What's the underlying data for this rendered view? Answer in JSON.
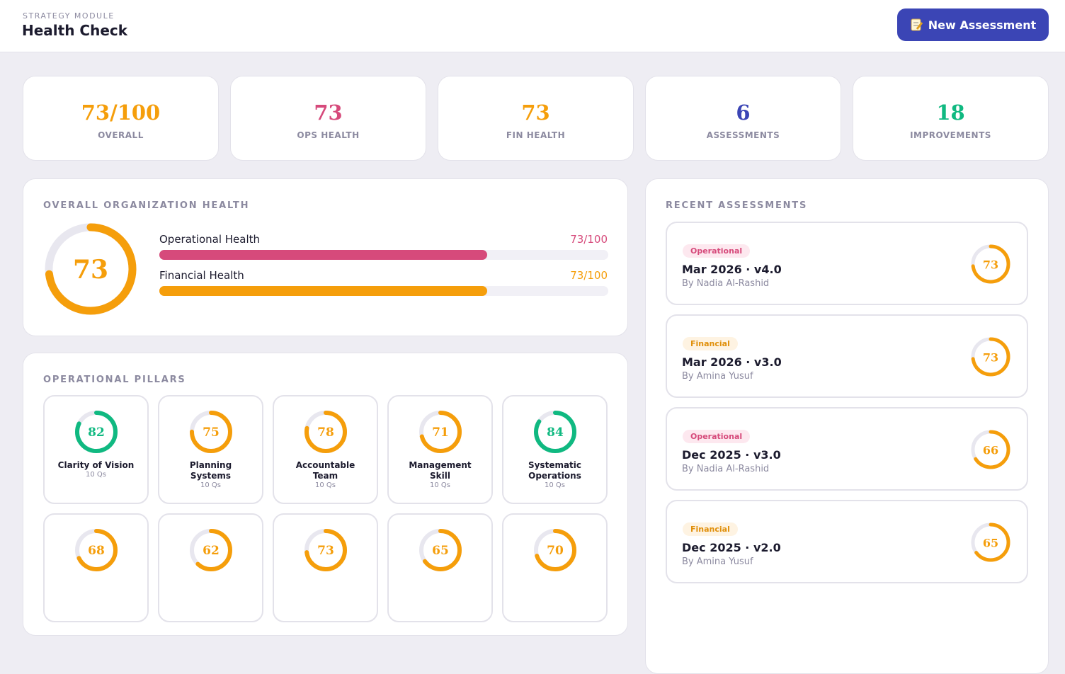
{
  "header": {
    "module": "STRATEGY MODULE",
    "title": "Health Check",
    "button": "New Assessment"
  },
  "stats": [
    {
      "value": "73/100",
      "label": "OVERALL",
      "color": "#f59e0b"
    },
    {
      "value": 73,
      "label": "OPS HEALTH",
      "color": "#d64a7b"
    },
    {
      "value": 73,
      "label": "FIN HEALTH",
      "color": "#f59e0b"
    },
    {
      "value": 6,
      "label": "ASSESSMENTS",
      "color": "#3b45b5"
    },
    {
      "value": 18,
      "label": "IMPROVEMENTS",
      "color": "#10b981"
    }
  ],
  "overall": {
    "title": "OVERALL ORGANIZATION HEALTH",
    "score": 73,
    "max": 100,
    "color": "#f59e0b",
    "bars": [
      {
        "label": "Operational Health",
        "value": 73,
        "value_label": "73/100",
        "color": "#d64a7b"
      },
      {
        "label": "Financial Health",
        "value": 73,
        "value_label": "73/100",
        "color": "#f59e0b"
      }
    ]
  },
  "pillars": {
    "title": "OPERATIONAL PILLARS",
    "items": [
      {
        "name": "Clarity of Vision",
        "score": 82,
        "questions": "10 Qs",
        "color": "#10b981"
      },
      {
        "name": "Planning Systems",
        "score": 75,
        "questions": "10 Qs",
        "color": "#f59e0b"
      },
      {
        "name": "Accountable Team",
        "score": 78,
        "questions": "10 Qs",
        "color": "#f59e0b"
      },
      {
        "name": "Management Skill",
        "score": 71,
        "questions": "10 Qs",
        "color": "#f59e0b"
      },
      {
        "name": "Systematic Operations",
        "score": 84,
        "questions": "10 Qs",
        "color": "#10b981"
      },
      {
        "name": null,
        "score": 68,
        "color": "#f59e0b"
      },
      {
        "name": null,
        "score": 62,
        "color": "#f59e0b"
      },
      {
        "name": null,
        "score": 73,
        "color": "#f59e0b"
      },
      {
        "name": null,
        "score": 65,
        "color": "#f59e0b"
      },
      {
        "name": null,
        "score": 70,
        "color": "#f59e0b"
      }
    ]
  },
  "recent": {
    "title": "RECENT ASSESSMENTS",
    "items": [
      {
        "tag": "Operational",
        "title": "Mar 2026 · v4.0",
        "author": "By Nadia Al-Rashid",
        "score": 73,
        "color": "#f59e0b"
      },
      {
        "tag": "Financial",
        "title": "Mar 2026 · v3.0",
        "author": "By Amina Yusuf",
        "score": 73,
        "color": "#f59e0b"
      },
      {
        "tag": "Operational",
        "title": "Dec 2025 · v3.0",
        "author": "By Nadia Al-Rashid",
        "score": 66,
        "color": "#f59e0b"
      },
      {
        "tag": "Financial",
        "title": "Dec 2025 · v2.0",
        "author": "By Amina Yusuf",
        "score": 65,
        "color": "#f59e0b"
      }
    ]
  }
}
